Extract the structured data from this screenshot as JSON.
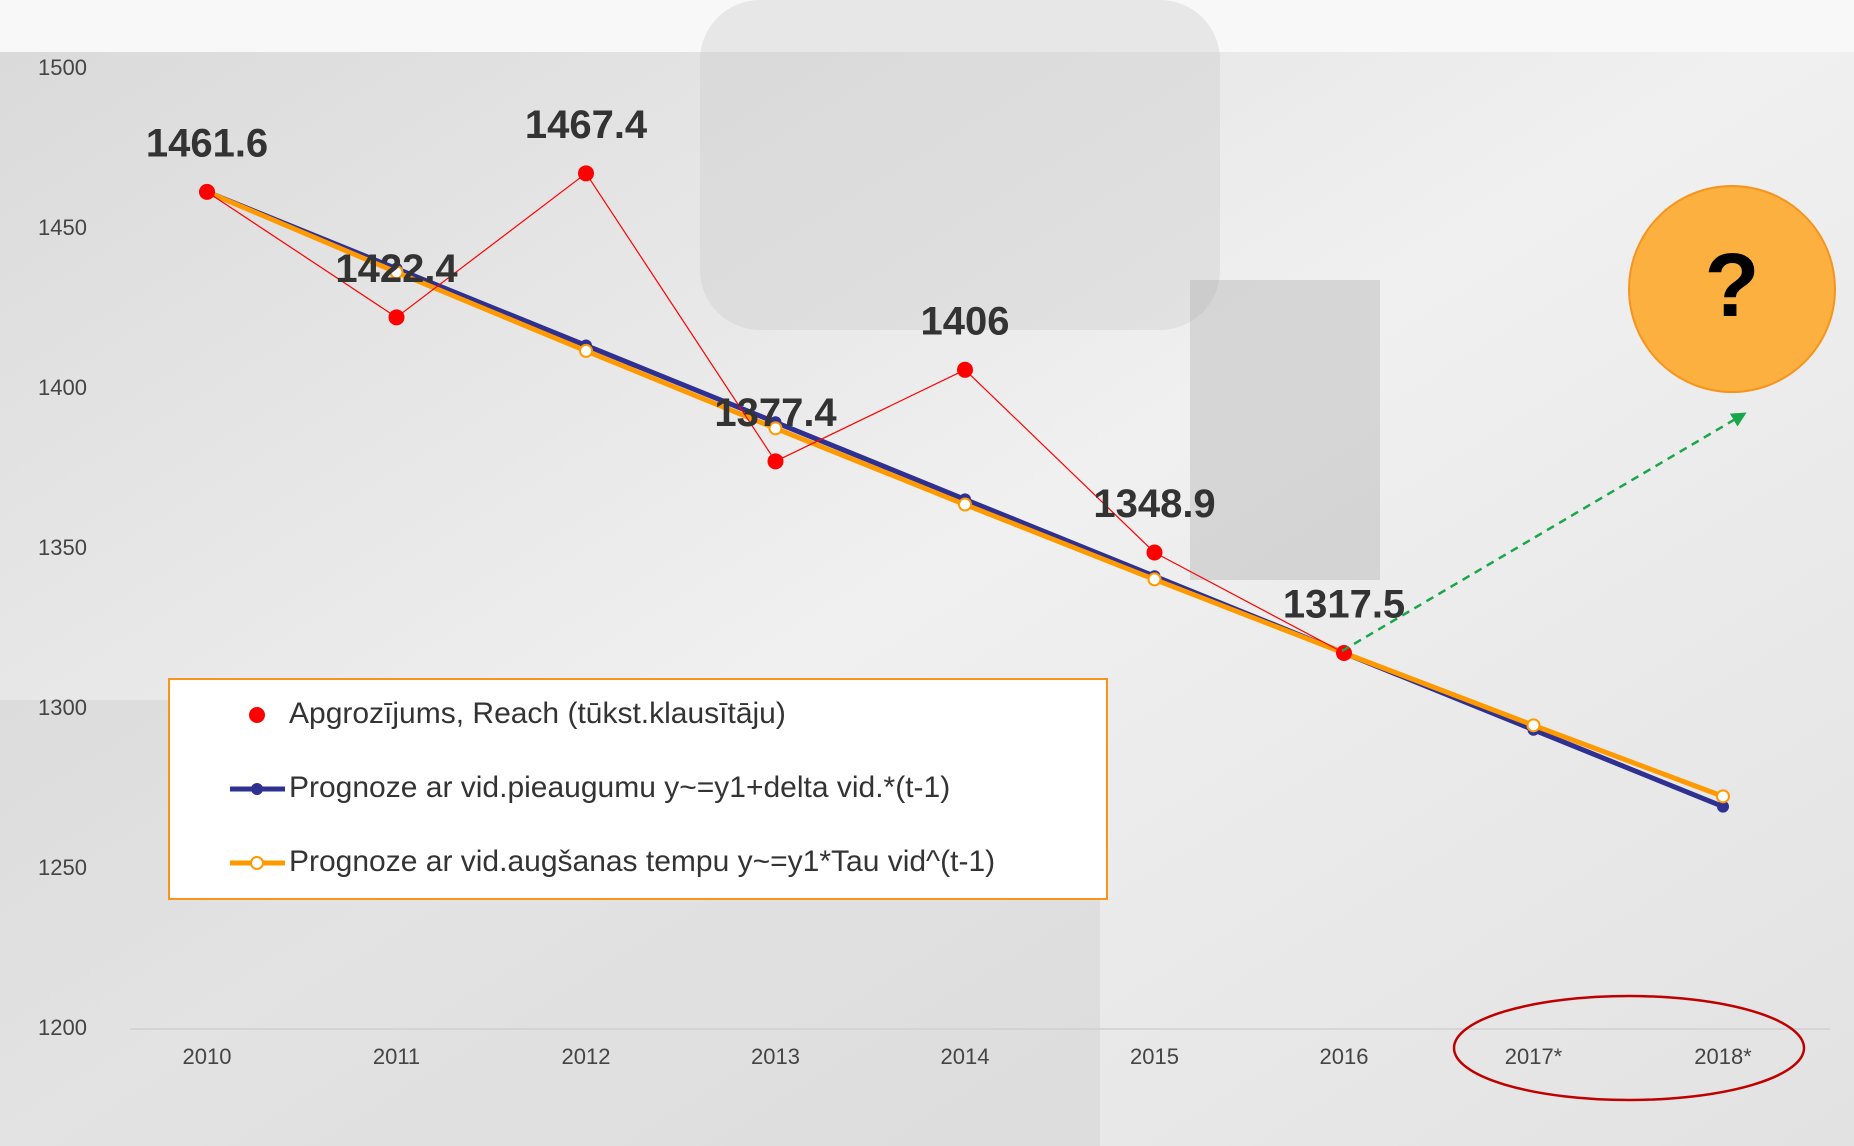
{
  "chart_data": {
    "type": "line",
    "categories": [
      "2010",
      "2011",
      "2012",
      "2013",
      "2014",
      "2015",
      "2016",
      "2017*",
      "2018*"
    ],
    "series": [
      {
        "name": "Apgrozījums, Reach (tūkst.klausītāju)",
        "color": "#ff0000",
        "style": "dots-thin-line",
        "show_labels": true,
        "values": [
          1461.6,
          1422.4,
          1467.4,
          1377.4,
          1406,
          1348.9,
          1317.5,
          null,
          null
        ]
      },
      {
        "name": "Prognoze ar vid.pieaugumu y~=y1+delta vid.*(t-1)",
        "color": "#2e3192",
        "style": "thick-line-filled",
        "values": [
          1461.6,
          1437.6,
          1413.6,
          1389.6,
          1365.5,
          1341.5,
          1317.5,
          1293.5,
          1269.5
        ]
      },
      {
        "name": "Prognoze ar vid.augšanas tempu y~=y1*Tau vid^(t-1)",
        "color": "#ff9900",
        "style": "thick-line-hollow",
        "values": [
          1461.6,
          1436.5,
          1411.9,
          1387.7,
          1363.9,
          1340.5,
          1317.5,
          1294.9,
          1272.7
        ]
      }
    ],
    "ylim": [
      1200,
      1500
    ],
    "yticks": [
      1200,
      1250,
      1300,
      1350,
      1400,
      1450,
      1500
    ],
    "annotation": "?"
  }
}
